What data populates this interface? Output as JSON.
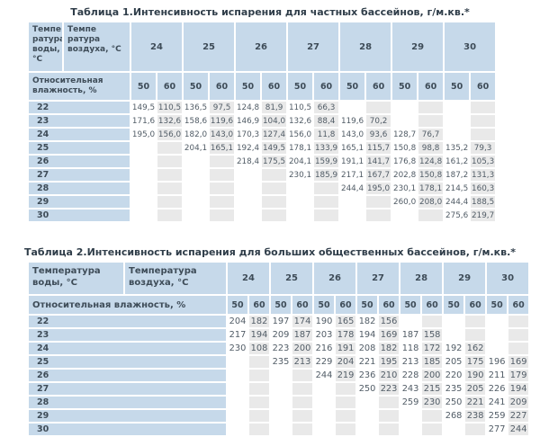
{
  "colors": {
    "header_blue": "#c6d9ea",
    "shade_gray": "#e9e9e9",
    "title_text": "#2f3d49",
    "header_text": "#3e4c58",
    "value_text": "#515c66"
  },
  "table1": {
    "title": "Таблица 1.Интенсивность испарения для частных бассейнов, г/м.кв.*",
    "water_temp_header": "Темпе ратура воды, °С",
    "air_temp_header": "Темпе ратура воздуха, °С",
    "humidity_header": "Относительная влажность, %",
    "air_temps": [
      "24",
      "25",
      "26",
      "27",
      "28",
      "29",
      "30"
    ],
    "humidity_values": [
      "50",
      "60"
    ],
    "rows": [
      {
        "label": "22",
        "values": [
          "149,5",
          "110,5",
          "136,5",
          "97,5",
          "124,8",
          "81,9",
          "110,5",
          "66,3",
          "",
          "",
          "",
          "",
          "",
          ""
        ]
      },
      {
        "label": "23",
        "values": [
          "171,6",
          "132,6",
          "158,6",
          "119,6",
          "146,9",
          "104,0",
          "132,6",
          "88,4",
          "119,6",
          "70,2",
          "",
          "",
          "",
          ""
        ]
      },
      {
        "label": "24",
        "values": [
          "195,0",
          "156,0",
          "182,0",
          "143,0",
          "170,3",
          "127,4",
          "156,0",
          "11,8",
          "143,0",
          "93,6",
          "128,7",
          "76,7",
          "",
          ""
        ]
      },
      {
        "label": "25",
        "values": [
          "",
          "",
          "204,1",
          "165,1",
          "192,4",
          "149,5",
          "178,1",
          "133,9",
          "165,1",
          "115,7",
          "150,8",
          "98,8",
          "135,2",
          "79,3"
        ]
      },
      {
        "label": "26",
        "values": [
          "",
          "",
          "",
          "",
          "218,4",
          "175,5",
          "204,1",
          "159,9",
          "191,1",
          "141,7",
          "176,8",
          "124,8",
          "161,2",
          "105,3"
        ]
      },
      {
        "label": "27",
        "values": [
          "",
          "",
          "",
          "",
          "",
          "",
          "230,1",
          "185,9",
          "217,1",
          "167,7",
          "202,8",
          "150,8",
          "187,2",
          "131,3"
        ]
      },
      {
        "label": "28",
        "values": [
          "",
          "",
          "",
          "",
          "",
          "",
          "",
          "",
          "244,4",
          "195,0",
          "230,1",
          "178,1",
          "214,5",
          "160,3"
        ]
      },
      {
        "label": "29",
        "values": [
          "",
          "",
          "",
          "",
          "",
          "",
          "",
          "",
          "",
          "",
          "260,0",
          "208,0",
          "244,4",
          "188,5"
        ]
      },
      {
        "label": "30",
        "values": [
          "",
          "",
          "",
          "",
          "",
          "",
          "",
          "",
          "",
          "",
          "",
          "",
          "275,6",
          "219,7"
        ]
      }
    ]
  },
  "table2": {
    "title": "Таблица 2.Интенсивность испарения для больших общественных бассейнов, г/м.кв.*",
    "water_temp_header": "Температура воды, °С",
    "air_temp_header": "Температура воздуха, °С",
    "humidity_header": "Относительная влажность, %",
    "air_temps": [
      "24",
      "25",
      "26",
      "27",
      "28",
      "29",
      "30"
    ],
    "humidity_values": [
      "50",
      "60"
    ],
    "rows": [
      {
        "label": "22",
        "values": [
          "204",
          "182",
          "197",
          "174",
          "190",
          "165",
          "182",
          "156",
          "",
          "",
          "",
          "",
          "",
          ""
        ]
      },
      {
        "label": "23",
        "values": [
          "217",
          "194",
          "209",
          "187",
          "203",
          "178",
          "194",
          "169",
          "187",
          "158",
          "",
          "",
          "",
          ""
        ]
      },
      {
        "label": "24",
        "values": [
          "230",
          "108",
          "223",
          "200",
          "216",
          "191",
          "208",
          "182",
          "118",
          "172",
          "192",
          "162",
          "",
          ""
        ]
      },
      {
        "label": "25",
        "values": [
          "",
          "",
          "235",
          "213",
          "229",
          "204",
          "221",
          "195",
          "213",
          "185",
          "205",
          "175",
          "196",
          "169"
        ]
      },
      {
        "label": "26",
        "values": [
          "",
          "",
          "",
          "",
          "244",
          "219",
          "236",
          "210",
          "228",
          "200",
          "220",
          "190",
          "211",
          "179"
        ]
      },
      {
        "label": "27",
        "values": [
          "",
          "",
          "",
          "",
          "",
          "",
          "250",
          "223",
          "243",
          "215",
          "235",
          "205",
          "226",
          "194"
        ]
      },
      {
        "label": "28",
        "values": [
          "",
          "",
          "",
          "",
          "",
          "",
          "",
          "",
          "259",
          "230",
          "250",
          "221",
          "241",
          "209"
        ]
      },
      {
        "label": "29",
        "values": [
          "",
          "",
          "",
          "",
          "",
          "",
          "",
          "",
          "",
          "",
          "268",
          "238",
          "259",
          "227"
        ]
      },
      {
        "label": "30",
        "values": [
          "",
          "",
          "",
          "",
          "",
          "",
          "",
          "",
          "",
          "",
          "",
          "",
          "277",
          "244"
        ]
      }
    ]
  }
}
